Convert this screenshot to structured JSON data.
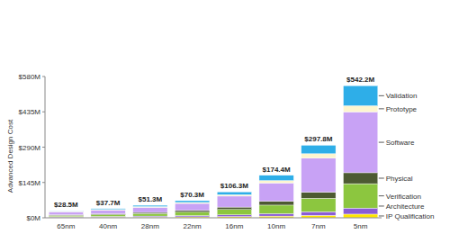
{
  "chart_data": {
    "type": "bar",
    "stacked": true,
    "y_label": "Advanced Design Cost",
    "categories": [
      "65nm",
      "40nm",
      "28nm",
      "22nm",
      "16nm",
      "10nm",
      "7nm",
      "5nm"
    ],
    "series": [
      {
        "name": "IP Qualification",
        "color": "#ffe600",
        "values": [
          2,
          2.5,
          3,
          4,
          5,
          7,
          10,
          15
        ]
      },
      {
        "name": "Architecture",
        "color": "#8a5cd6",
        "values": [
          2.5,
          3,
          4,
          5,
          7,
          10,
          15,
          25
        ]
      },
      {
        "name": "Verification",
        "color": "#8cc63f",
        "values": [
          5,
          7,
          10,
          14,
          22,
          35,
          55,
          100
        ]
      },
      {
        "name": "Physical",
        "color": "#4d5a32",
        "values": [
          3,
          4,
          5,
          7,
          10,
          16,
          25,
          45
        ]
      },
      {
        "name": "Software",
        "color": "#c8a2f5",
        "values": [
          12,
          15,
          21,
          29,
          45,
          75,
          140,
          250
        ]
      },
      {
        "name": "Prototype",
        "color": "#fdf6cf",
        "values": [
          2,
          2.5,
          3,
          4,
          6,
          10,
          18,
          25
        ]
      },
      {
        "name": "Validation",
        "color": "#2eaee8",
        "values": [
          2,
          3.7,
          5.3,
          7.3,
          11.3,
          21.4,
          34.8,
          82.2
        ]
      }
    ],
    "totals": [
      28.5,
      37.7,
      51.3,
      70.3,
      106.3,
      174.4,
      297.8,
      542.2
    ],
    "total_labels": [
      "$28.5M",
      "$37.7M",
      "$51.3M",
      "$70.3M",
      "$106.3M",
      "$174.4M",
      "$297.8M",
      "$542.2M"
    ],
    "ylim": [
      0,
      580
    ],
    "yticks": [
      {
        "value": 0,
        "label": "$0M"
      },
      {
        "value": 145,
        "label": "$145M"
      },
      {
        "value": 290,
        "label": "$290M"
      },
      {
        "value": 435,
        "label": "$435M"
      },
      {
        "value": 580,
        "label": "$580M"
      }
    ],
    "grid": false,
    "legend": "right"
  }
}
